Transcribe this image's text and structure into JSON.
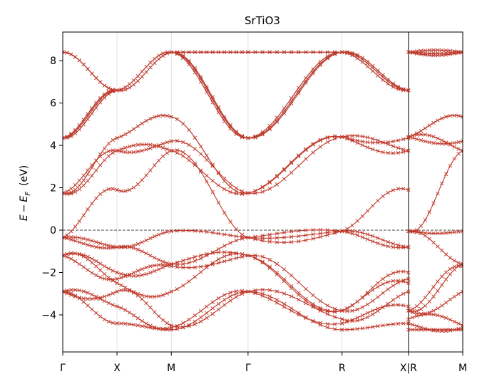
{
  "chart_data": {
    "type": "line",
    "title": "SrTiO3",
    "ylabel": "E − E_F (eV)",
    "ylabel_parts": {
      "e": "E",
      "minus": "−",
      "ef": "E",
      "sub": "F",
      "unit": "(eV)"
    },
    "ylim": [
      -5.75,
      9.35
    ],
    "yticks": [
      -4,
      -2,
      0,
      2,
      4,
      6,
      8
    ],
    "ytick_labels": [
      "−4",
      "−2",
      "0",
      "2",
      "4",
      "6",
      "8"
    ],
    "kpath": {
      "labels": [
        "Γ",
        "X",
        "M",
        "Γ",
        "R",
        "X|R",
        "M"
      ],
      "positions": [
        0,
        0.5,
        1.0,
        1.7071,
        2.5731,
        3.1854,
        3.6854
      ],
      "segment_breaks": [
        3.1854
      ]
    },
    "fermi_level": 0,
    "grid": "vertical lines at high-symmetry points",
    "colors": {
      "dft_bands": "#8c8c8c",
      "wannier_bands": "#c0392b",
      "fermi_line": "#333333",
      "kpoint_grid": "#d8d8d8"
    },
    "series": [
      {
        "marker": "x",
        "values": {
          "Γ": [
            -2.9,
            -2.9,
            -2.9,
            -1.2,
            -1.2,
            -1.2,
            -0.35,
            -0.35,
            -0.35,
            1.75,
            1.75,
            1.75,
            4.35,
            4.35,
            4.35,
            8.4,
            8.4
          ],
          "X": [
            -4.4,
            -3.6,
            -2.9,
            -2.5,
            -2.3,
            -2.0,
            -0.8,
            -0.8,
            1.9,
            3.75,
            3.75,
            4.35,
            6.6,
            6.6
          ],
          "M": [
            -4.7,
            -4.6,
            -4.5,
            -2.9,
            -1.7,
            -1.6,
            -1.6,
            -0.05,
            3.75,
            3.75,
            4.2,
            5.35,
            8.4,
            8.4
          ],
          "Γ2": [
            -2.9,
            -2.9,
            -2.9,
            -1.2,
            -1.2,
            -1.2,
            -0.35,
            -0.35,
            -0.35,
            1.75,
            1.75,
            1.75,
            4.35,
            4.35,
            4.35,
            8.4,
            8.4
          ],
          "R": [
            -4.7,
            -4.4,
            -4.2,
            -3.8,
            -3.8,
            -3.8,
            -0.05,
            -0.05,
            -0.05,
            4.4,
            4.4,
            4.4,
            8.4,
            8.4,
            8.4
          ],
          "X_R": [
            -4.4,
            -3.6,
            -2.9,
            -2.5,
            -2.3,
            -2.0,
            -0.8,
            -0.8,
            1.9,
            3.75,
            3.75,
            4.35,
            6.6,
            6.6
          ],
          "R_X": [
            -4.7,
            -4.4,
            -4.2,
            -3.8,
            -3.8,
            -3.8,
            -0.05,
            -0.05,
            -0.05,
            4.4,
            4.4,
            4.4,
            8.4,
            8.4,
            8.4
          ],
          "M_end": [
            -4.7,
            -4.6,
            -4.5,
            -2.9,
            -1.7,
            -1.6,
            -1.6,
            -0.05,
            3.75,
            3.75,
            4.2,
            5.35,
            8.4,
            8.4
          ]
        }
      }
    ]
  }
}
